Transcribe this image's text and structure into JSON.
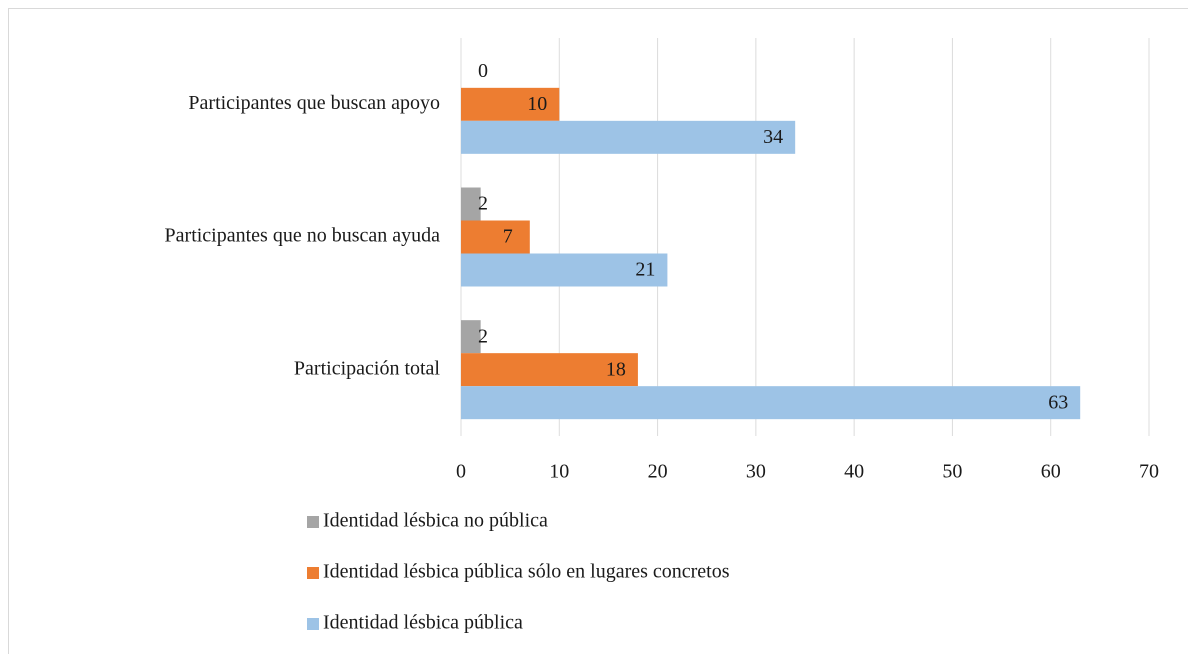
{
  "chart_data": {
    "type": "bar",
    "orientation": "horizontal",
    "categories": [
      "Participantes que buscan apoyo",
      "Participantes que no buscan ayuda",
      "Participación total"
    ],
    "series": [
      {
        "name": "Identidad lésbica no pública",
        "color": "#a5a5a5",
        "values": [
          0,
          2,
          2
        ]
      },
      {
        "name": "Identidad lésbica pública sólo en lugares concretos",
        "color": "#ed7d31",
        "values": [
          10,
          7,
          18
        ]
      },
      {
        "name": "Identidad lésbica pública",
        "color": "#9dc3e6",
        "values": [
          34,
          21,
          63
        ]
      }
    ],
    "xlim": [
      0,
      70
    ],
    "xticks": [
      0,
      10,
      20,
      30,
      40,
      50,
      60,
      70
    ],
    "grid": true,
    "legend": "bottom"
  }
}
